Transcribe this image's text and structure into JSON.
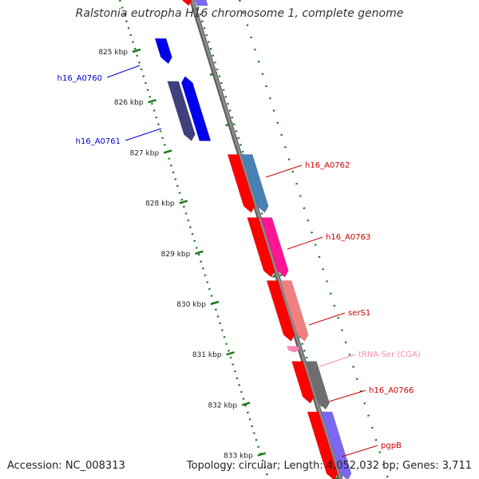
{
  "title": "Ralstonia eutropha H16 chromosome 1, complete genome",
  "footer": {
    "accession": "Accession: NC_008313",
    "topology": "Topology: circular; Length: 4,052,032 bp; Genes: 3,711"
  },
  "colors": {
    "backbone": "#8c8c8c",
    "ruler": "#1e7a1e",
    "blue": "#0000ee",
    "navy": "#40407e",
    "red": "#ff0000",
    "steelblue": "#4682b4",
    "magenta": "#ff1493",
    "salmon": "#f08080",
    "pink": "#ff88b8",
    "gray": "#6e6e6e",
    "lavender": "#7b68ee",
    "label_blue": "#0000cc",
    "label_red": "#cc0000",
    "label_pink": "#ff8cb0"
  },
  "ruler_ticks": [
    "825 kbp",
    "826 kbp",
    "827 kbp",
    "828 kbp",
    "829 kbp",
    "830 kbp",
    "831 kbp",
    "832 kbp",
    "833 kbp"
  ],
  "features": [
    {
      "id": "f_top_red",
      "color": "red",
      "start": 823.78,
      "end": 824.1,
      "offset": -6,
      "strand": "plus"
    },
    {
      "id": "f_top_lav",
      "color": "lavender",
      "start": 823.78,
      "end": 824.1,
      "offset": 11,
      "strand": "minus"
    },
    {
      "id": "f_blue_a",
      "color": "blue",
      "start": 824.75,
      "end": 825.25,
      "offset": -54,
      "strand": "plus"
    },
    {
      "id": "f_navy",
      "color": "navy",
      "start": 825.6,
      "end": 826.78,
      "offset": -55,
      "strand": "plus"
    },
    {
      "id": "f_blue_b",
      "color": "blue",
      "start": 825.5,
      "end": 826.78,
      "offset": -38,
      "strand": "minus"
    },
    {
      "id": "f_red1",
      "color": "red",
      "start": 827.05,
      "end": 828.2,
      "offset": -8,
      "strand": "plus"
    },
    {
      "id": "f_steel",
      "color": "steelblue",
      "start": 827.05,
      "end": 828.2,
      "offset": 9,
      "strand": "plus"
    },
    {
      "id": "f_red2",
      "color": "red",
      "start": 828.3,
      "end": 829.48,
      "offset": -8,
      "strand": "plus"
    },
    {
      "id": "f_magenta",
      "color": "magenta",
      "start": 828.3,
      "end": 829.48,
      "offset": 9,
      "strand": "plus"
    },
    {
      "id": "f_red3",
      "color": "red",
      "start": 829.55,
      "end": 830.75,
      "offset": -8,
      "strand": "plus"
    },
    {
      "id": "f_salmon",
      "color": "salmon",
      "start": 829.55,
      "end": 830.75,
      "offset": 9,
      "strand": "plus"
    },
    {
      "id": "f_pink",
      "color": "pink",
      "start": 830.85,
      "end": 830.97,
      "offset": -8,
      "strand": "plus"
    },
    {
      "id": "f_red4",
      "color": "red",
      "start": 831.15,
      "end": 831.98,
      "offset": -8,
      "strand": "plus"
    },
    {
      "id": "f_gray",
      "color": "gray",
      "start": 831.15,
      "end": 832.1,
      "offset": 9,
      "strand": "plus"
    },
    {
      "id": "f_red5",
      "color": "red",
      "start": 832.15,
      "end": 833.5,
      "offset": -8,
      "strand": "plus"
    },
    {
      "id": "f_lav2",
      "color": "lavender",
      "start": 832.15,
      "end": 833.5,
      "offset": 9,
      "strand": "plus"
    }
  ],
  "labels": [
    {
      "text": "h16_A0760",
      "color": "label_blue",
      "side": "left",
      "line": [
        [
          134,
          97
        ],
        [
          175,
          82
        ]
      ]
    },
    {
      "text": "h16_A0761",
      "color": "label_blue",
      "side": "left",
      "line": [
        [
          157,
          176
        ],
        [
          202,
          161
        ]
      ]
    },
    {
      "text": "h16_A0762",
      "color": "label_red",
      "side": "right",
      "line": [
        [
          378,
          207
        ],
        [
          333,
          222
        ]
      ]
    },
    {
      "text": "h16_A0763",
      "color": "label_red",
      "side": "right",
      "line": [
        [
          404,
          297
        ],
        [
          360,
          312
        ]
      ]
    },
    {
      "text": "serS1",
      "color": "label_red",
      "side": "right",
      "line": [
        [
          432,
          392
        ],
        [
          387,
          407
        ]
      ]
    },
    {
      "text": "tRNA-Ser (CGA)",
      "color": "label_pink",
      "side": "right",
      "line": [
        [
          445,
          444
        ],
        [
          400,
          459
        ]
      ]
    },
    {
      "text": "h16_A0766",
      "color": "label_red",
      "side": "right",
      "line": [
        [
          458,
          489
        ],
        [
          412,
          503
        ]
      ]
    },
    {
      "text": "pgpB",
      "color": "label_red",
      "side": "right",
      "line": [
        [
          473,
          558
        ],
        [
          428,
          572
        ]
      ]
    }
  ]
}
